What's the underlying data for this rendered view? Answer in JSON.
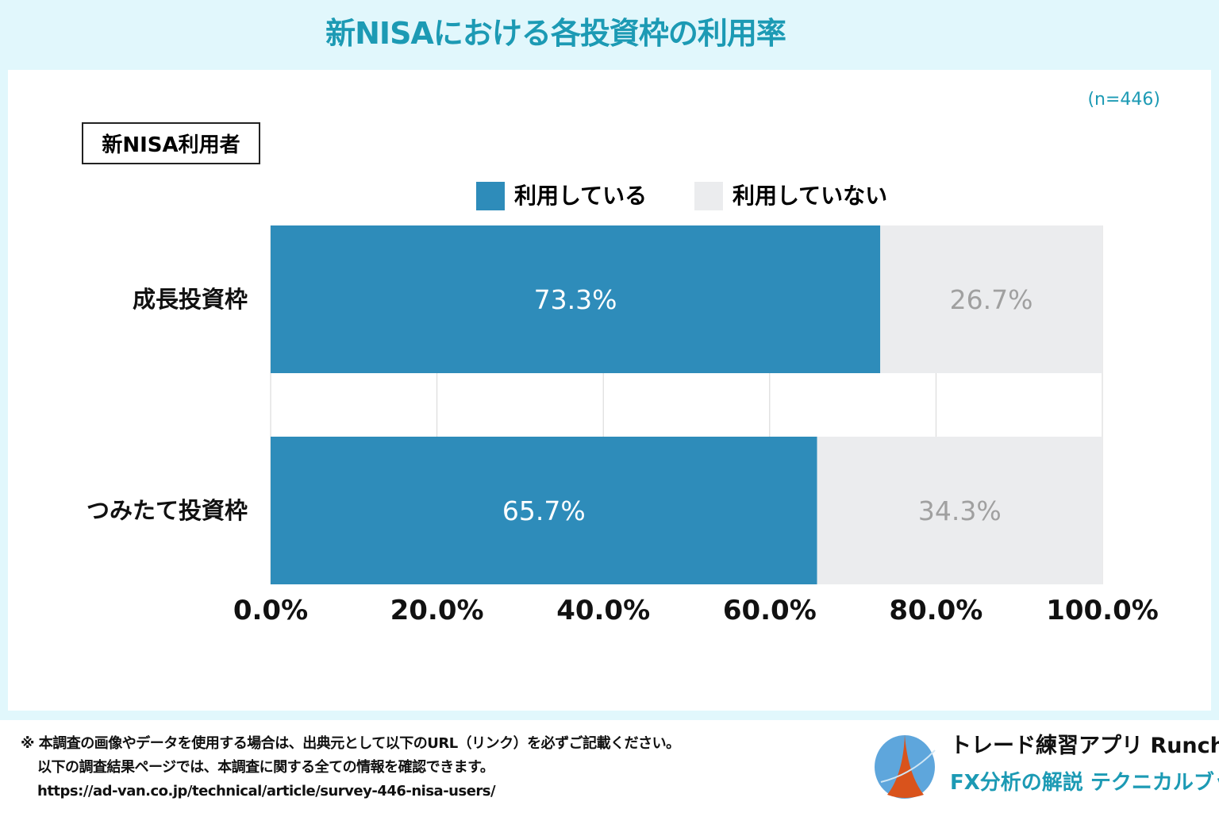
{
  "title": "新NISAにおける各投資枠の利用率",
  "sample": "(n=446)",
  "group_label": "新NISA利用者",
  "colors": {
    "used": "#2e8cba",
    "not_used": "#ebecee",
    "used_label": "#ffffff",
    "not_used_label": "#a0a0a0",
    "accent": "#1c9ab4"
  },
  "chart_data": {
    "type": "bar",
    "orientation": "horizontal-stacked-100",
    "categories": [
      "成長投資枠",
      "つみたて投資枠"
    ],
    "series": [
      {
        "name": "利用している",
        "values": [
          73.3,
          65.7
        ],
        "labels": [
          "73.3%",
          "65.7%"
        ]
      },
      {
        "name": "利用していない",
        "values": [
          26.7,
          34.3
        ],
        "labels": [
          "26.7%",
          "34.3%"
        ]
      }
    ],
    "xlim": [
      0,
      100
    ],
    "xticks": [
      "0.0%",
      "20.0%",
      "40.0%",
      "60.0%",
      "80.0%",
      "100.0%"
    ],
    "legend": "top",
    "grid": true
  },
  "footer": {
    "note1": "※ 本調査の画像やデータを使用する場合は、出典元として以下のURL（リンク）を必ずご記載ください。",
    "note2": "以下の調査結果ページでは、本調査に関する全ての情報を確認できます。",
    "url": "https://ad-van.co.jp/technical/article/survey-446-nisa-users/",
    "brand1": "トレード練習アプリ Runcha",
    "brand2": "FX分析の解説 テクニカルブック"
  }
}
